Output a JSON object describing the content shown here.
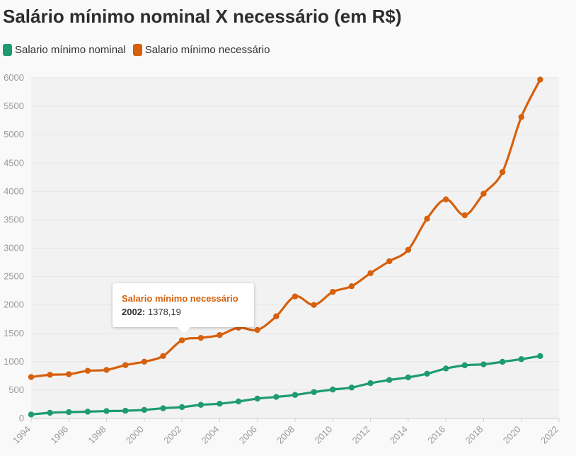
{
  "title": "Salário mínimo nominal X necessário (em R$)",
  "legend": [
    {
      "name": "Salario mínimo nominal",
      "color": "#1e9b73"
    },
    {
      "name": "Salario mínimo necessário",
      "color": "#d6600c"
    }
  ],
  "tooltip": {
    "series": "Salario mínimo necessário",
    "year": "2002:",
    "value": "1378,19"
  },
  "chart_data": {
    "type": "line",
    "title": "Salário mínimo nominal X necessário (em R$)",
    "xlabel": "",
    "ylabel": "",
    "xlim": [
      1994,
      2022
    ],
    "ylim": [
      0,
      6000
    ],
    "x_ticks": [
      1994,
      1996,
      1998,
      2000,
      2002,
      2004,
      2006,
      2008,
      2010,
      2012,
      2014,
      2016,
      2018,
      2020,
      2022
    ],
    "y_ticks": [
      0,
      500,
      1000,
      1500,
      2000,
      2500,
      3000,
      3500,
      4000,
      4500,
      5000,
      5500,
      6000
    ],
    "grid": true,
    "legend_position": "top-left",
    "x": [
      1994,
      1995,
      1996,
      1997,
      1998,
      1999,
      2000,
      2001,
      2002,
      2003,
      2004,
      2005,
      2006,
      2007,
      2008,
      2009,
      2010,
      2011,
      2012,
      2013,
      2014,
      2015,
      2016,
      2017,
      2018,
      2019,
      2020,
      2021
    ],
    "series": [
      {
        "name": "Salario mínimo nominal",
        "color": "#1e9b73",
        "values": [
          70,
          100,
          112,
          120,
          130,
          136,
          151,
          180,
          200,
          240,
          260,
          300,
          350,
          380,
          415,
          465,
          510,
          545,
          622,
          678,
          724,
          788,
          880,
          937,
          954,
          998,
          1045,
          1100
        ]
      },
      {
        "name": "Salario mínimo necessário",
        "color": "#d6600c",
        "values": [
          730,
          770,
          780,
          840,
          855,
          940,
          1000,
          1100,
          1378.19,
          1420,
          1470,
          1600,
          1560,
          1800,
          2150,
          2000,
          2230,
          2330,
          2560,
          2770,
          2970,
          3520,
          3860,
          3580,
          3960,
          4340,
          5310,
          5970
        ]
      }
    ]
  }
}
